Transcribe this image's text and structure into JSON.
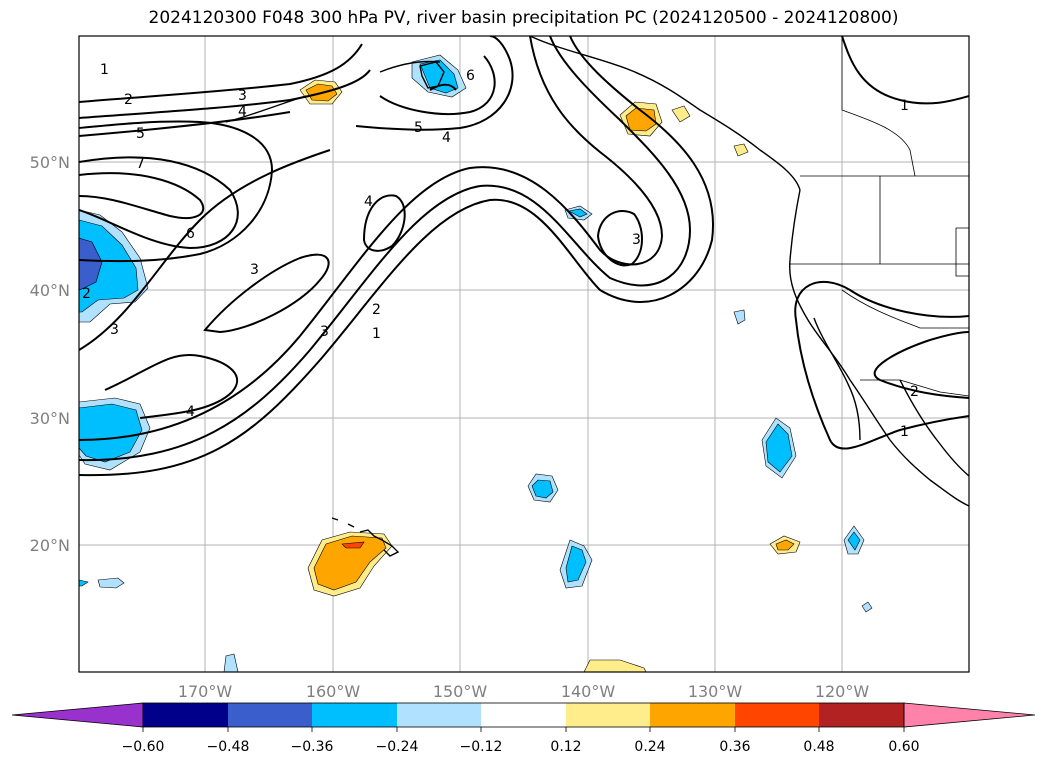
{
  "title": "2024120300 F048 300 hPa PV, river basin precipitation PC (2024120500 - 2024120800)",
  "map": {
    "lat_labels": [
      "50°N",
      "40°N",
      "30°N",
      "20°N"
    ],
    "lon_labels": [
      "170°W",
      "160°W",
      "150°W",
      "140°W",
      "130°W",
      "120°W"
    ]
  },
  "contour_labels": [
    "1",
    "2",
    "3",
    "4",
    "5",
    "6",
    "7"
  ],
  "colorbar": {
    "ticks": [
      "−0.60",
      "−0.48",
      "−0.36",
      "−0.24",
      "−0.12",
      "0.12",
      "0.24",
      "0.36",
      "0.48",
      "0.60"
    ],
    "colors": {
      "under": "#9932cc",
      "c1": "#00008b",
      "c2": "#3a5fcd",
      "c3": "#00bfff",
      "c4": "#b0e2ff",
      "c5": "#ffffff",
      "c6": "#ffec8b",
      "c7": "#ffa500",
      "c8": "#ff4500",
      "c9": "#b22222",
      "over": "#ff82ab"
    }
  }
}
